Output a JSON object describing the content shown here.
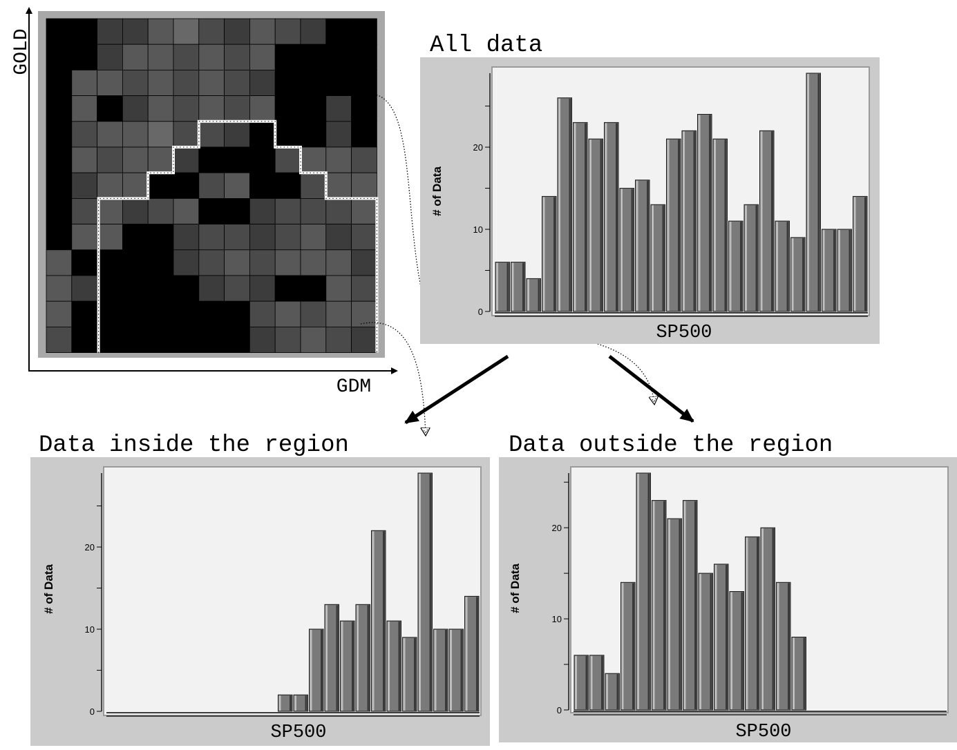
{
  "heatmap": {
    "xlabel": "GDM",
    "ylabel": "GOLD",
    "shade_levels": {
      "0": "#000000",
      "1": "#3c3c3c",
      "2": "#4a4a4a",
      "3": "#585858",
      "4": "#686868"
    },
    "grid": [
      [
        0,
        0,
        1,
        1,
        3,
        4,
        2,
        1,
        3,
        2,
        1,
        0,
        0
      ],
      [
        0,
        0,
        1,
        3,
        3,
        2,
        3,
        2,
        3,
        0,
        0,
        0,
        0
      ],
      [
        0,
        3,
        3,
        2,
        3,
        2,
        3,
        2,
        1,
        0,
        0,
        0,
        0
      ],
      [
        0,
        3,
        0,
        1,
        3,
        2,
        3,
        2,
        3,
        0,
        0,
        1,
        0
      ],
      [
        0,
        2,
        3,
        3,
        4,
        2,
        2,
        1,
        0,
        0,
        0,
        1,
        0
      ],
      [
        0,
        3,
        2,
        3,
        3,
        1,
        0,
        0,
        0,
        2,
        3,
        3,
        2
      ],
      [
        0,
        1,
        3,
        3,
        0,
        0,
        2,
        3,
        0,
        0,
        2,
        3,
        3
      ],
      [
        0,
        2,
        3,
        1,
        2,
        3,
        0,
        0,
        1,
        2,
        2,
        2,
        3
      ],
      [
        0,
        3,
        3,
        0,
        0,
        1,
        2,
        2,
        1,
        2,
        3,
        1,
        2
      ],
      [
        3,
        0,
        0,
        0,
        0,
        1,
        2,
        3,
        2,
        3,
        3,
        3,
        1
      ],
      [
        3,
        1,
        0,
        0,
        0,
        0,
        1,
        2,
        1,
        0,
        0,
        3,
        2
      ],
      [
        3,
        0,
        0,
        0,
        0,
        0,
        0,
        0,
        2,
        3,
        2,
        3,
        3
      ],
      [
        2,
        0,
        0,
        0,
        0,
        0,
        0,
        0,
        1,
        2,
        3,
        2,
        1
      ]
    ],
    "region_outline": [
      [
        2,
        13
      ],
      [
        2,
        7
      ],
      [
        4,
        7
      ],
      [
        4,
        6
      ],
      [
        5,
        6
      ],
      [
        5,
        5
      ],
      [
        6,
        5
      ],
      [
        6,
        4
      ],
      [
        9,
        4
      ],
      [
        9,
        5
      ],
      [
        10,
        5
      ],
      [
        10,
        6
      ],
      [
        11,
        6
      ],
      [
        11,
        7
      ],
      [
        13,
        7
      ],
      [
        13,
        13
      ]
    ]
  },
  "chart_data": [
    {
      "type": "bar",
      "title": "All data",
      "xlabel": "SP500",
      "ylabel": "# of Data",
      "ylim": [
        0,
        29
      ],
      "yticks": [
        0,
        10,
        20
      ],
      "values": [
        6,
        6,
        4,
        14,
        26,
        23,
        21,
        23,
        15,
        16,
        13,
        21,
        22,
        24,
        21,
        11,
        13,
        22,
        11,
        9,
        29,
        10,
        10,
        14
      ],
      "grid": false,
      "legend": false
    },
    {
      "type": "bar",
      "title": "Data inside the region",
      "xlabel": "SP500",
      "ylabel": "# of Data",
      "ylim": [
        0,
        29
      ],
      "yticks": [
        0,
        10,
        20
      ],
      "values": [
        0,
        0,
        0,
        0,
        0,
        0,
        0,
        0,
        0,
        0,
        0,
        2,
        2,
        10,
        13,
        11,
        13,
        22,
        11,
        9,
        29,
        10,
        10,
        14
      ],
      "grid": false,
      "legend": false
    },
    {
      "type": "bar",
      "title": "Data outside the region",
      "xlabel": "SP500",
      "ylabel": "# of Data",
      "ylim": [
        0,
        26
      ],
      "yticks": [
        0,
        10,
        20
      ],
      "values": [
        6,
        6,
        4,
        14,
        26,
        23,
        21,
        23,
        15,
        16,
        13,
        19,
        20,
        14,
        8,
        0,
        0,
        0,
        0,
        0,
        0,
        0,
        0,
        0
      ],
      "grid": false,
      "legend": false
    }
  ]
}
